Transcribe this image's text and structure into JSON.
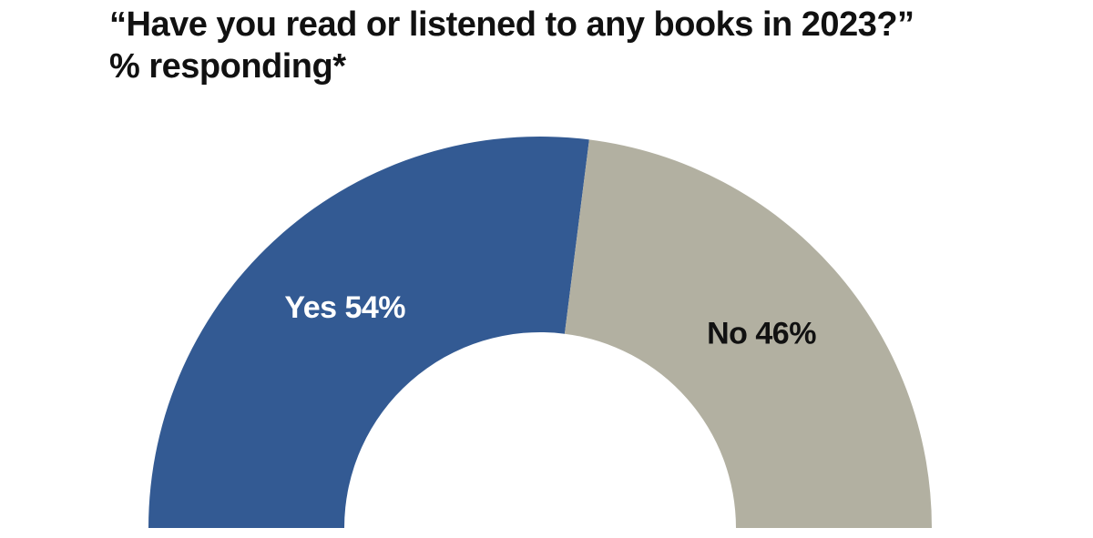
{
  "chart_data": {
    "type": "pie",
    "variant": "semicircle-donut",
    "title": "“Have you read or listened to any books in 2023?”",
    "subtitle": "% responding*",
    "slices": [
      {
        "label": "Yes",
        "value": 54,
        "display": "Yes 54%",
        "color": "#335a93",
        "label_color": "#ffffff"
      },
      {
        "label": "No",
        "value": 46,
        "display": "No 46%",
        "color": "#b2b0a1",
        "label_color": "#111111"
      }
    ],
    "unit": "%",
    "legend": "none"
  }
}
